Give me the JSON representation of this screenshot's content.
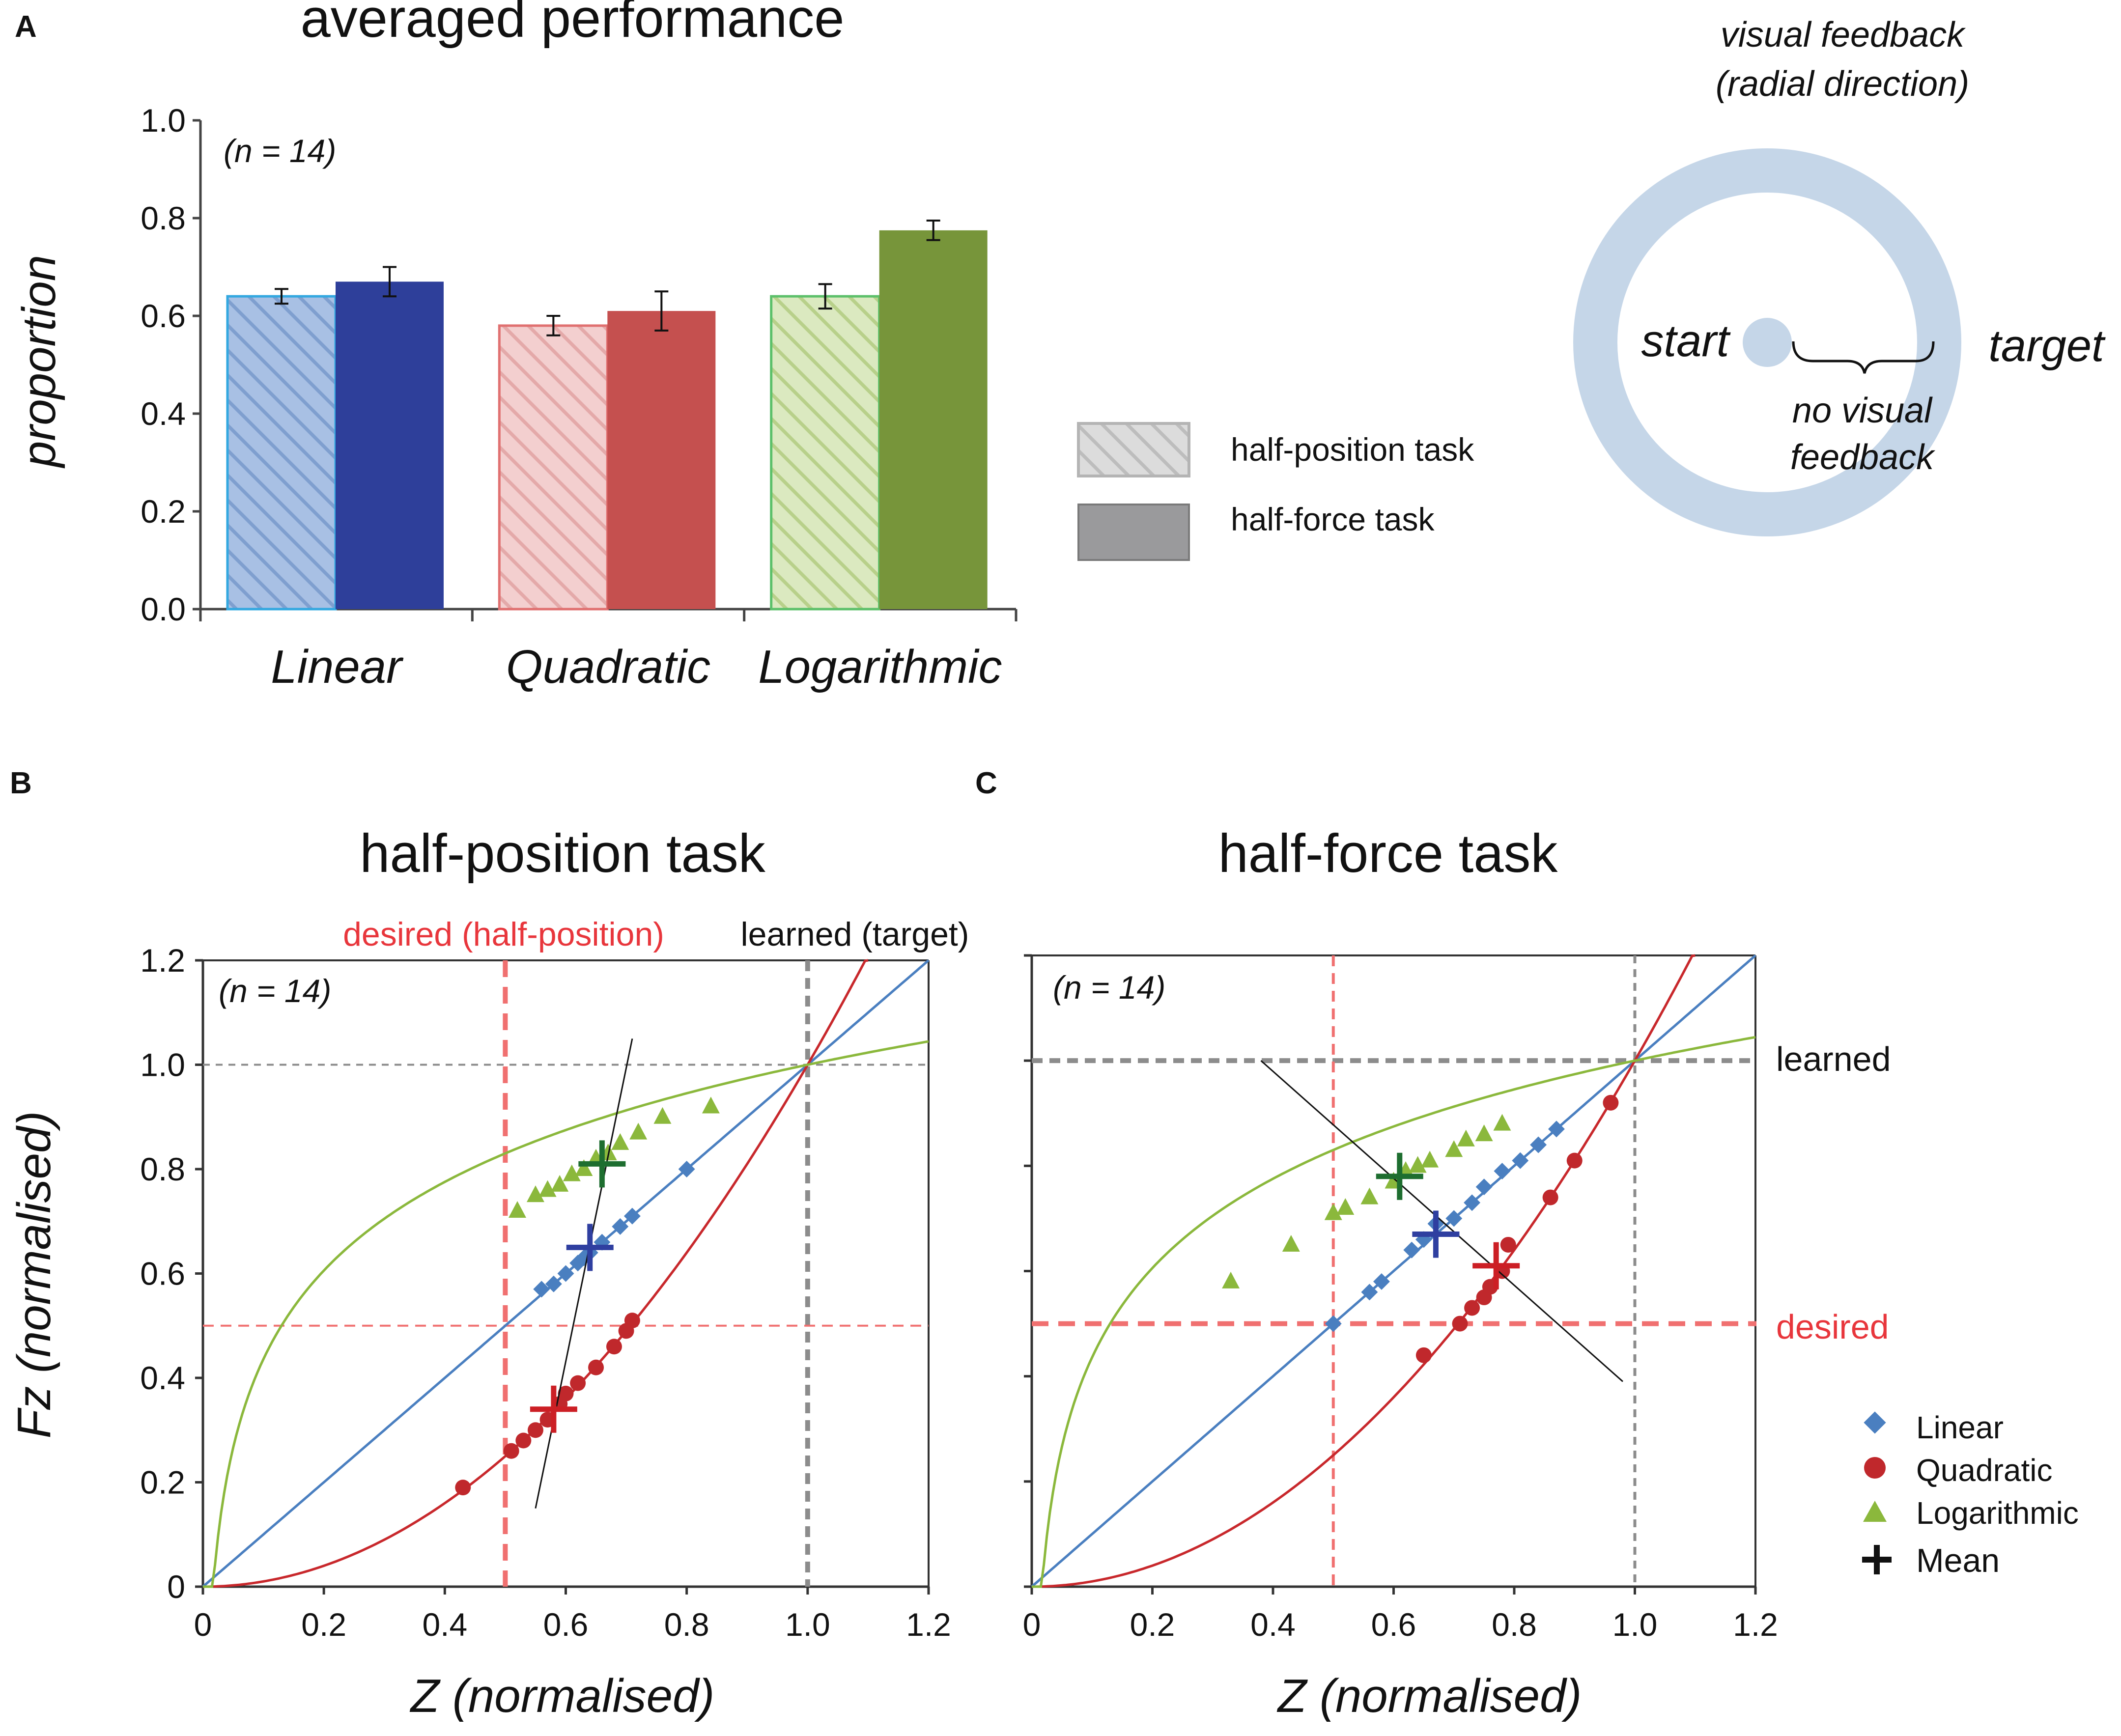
{
  "panel_letters": {
    "a": "A",
    "b": "B",
    "c": "C"
  },
  "colors": {
    "linear": "#4a7fc0",
    "linear_dark": "#2e3f9a",
    "linear_fill": "#a8c0e4",
    "quadratic": "#c0282c",
    "quadratic_bar": "#c5504f",
    "quadratic_fill": "#efc0c0",
    "logarithmic": "#8bb83c",
    "logarithmic_bar": "#77953a",
    "logarithmic_fill": "#d2e4b0",
    "mean_green": "#1e6e30",
    "mean_blue": "#2f3fa0",
    "mean_red": "#cc1f25",
    "desired_red": "#f07070",
    "grid_gray": "#8c8c8c",
    "ring": "#c5d6e8"
  },
  "chart_data": [
    {
      "type": "bar",
      "panel": "A",
      "title": "averaged performance",
      "ylabel": "proportion",
      "xlabel": "",
      "ylim": [
        0,
        1.0
      ],
      "yticks": [
        "0.0",
        "0.2",
        "0.4",
        "0.6",
        "0.8",
        "1.0"
      ],
      "annotation": "(n = 14)",
      "categories": [
        "Linear",
        "Quadratic",
        "Logarithmic"
      ],
      "series": [
        {
          "name": "half-position task",
          "pattern": "hatched",
          "values": [
            0.64,
            0.58,
            0.64
          ],
          "errors": [
            0.015,
            0.02,
            0.025
          ]
        },
        {
          "name": "half-force task",
          "pattern": "solid",
          "values": [
            0.67,
            0.61,
            0.775
          ],
          "errors": [
            0.03,
            0.04,
            0.02
          ]
        }
      ],
      "legend": {
        "placement": "right",
        "items": [
          "half-position task",
          "half-force task"
        ]
      }
    },
    {
      "type": "line",
      "panel": "B",
      "title": "half-position task",
      "xlabel": "Z (normalised)",
      "ylabel": "Fz (normalised)",
      "xlim": [
        0,
        1.2
      ],
      "ylim": [
        0,
        1.2
      ],
      "xticks": [
        "0",
        "0.2",
        "0.4",
        "0.6",
        "0.8",
        "1.0",
        "1.2"
      ],
      "yticks": [
        "0",
        "0.2",
        "0.4",
        "0.6",
        "0.8",
        "1.0",
        "1.2"
      ],
      "annotation": "(n = 14)",
      "vline_labels": {
        "desired": "desired (half-position)",
        "learned": "learned (target)"
      },
      "desired_x": 0.5,
      "learned_x": 1.0,
      "reference_y": [
        0.5,
        1.0
      ],
      "curves": [
        "Linear: Fz = Z",
        "Quadratic: Fz = Z^2",
        "Logarithmic: Fz rises steeply then flattens"
      ],
      "points": {
        "Linear": [
          [
            0.56,
            0.57
          ],
          [
            0.58,
            0.58
          ],
          [
            0.6,
            0.6
          ],
          [
            0.62,
            0.62
          ],
          [
            0.63,
            0.63
          ],
          [
            0.64,
            0.64
          ],
          [
            0.66,
            0.66
          ],
          [
            0.69,
            0.69
          ],
          [
            0.71,
            0.71
          ],
          [
            0.8,
            0.8
          ]
        ],
        "Quadratic": [
          [
            0.43,
            0.19
          ],
          [
            0.51,
            0.26
          ],
          [
            0.53,
            0.28
          ],
          [
            0.55,
            0.3
          ],
          [
            0.57,
            0.32
          ],
          [
            0.59,
            0.35
          ],
          [
            0.6,
            0.37
          ],
          [
            0.62,
            0.39
          ],
          [
            0.65,
            0.42
          ],
          [
            0.68,
            0.46
          ],
          [
            0.7,
            0.49
          ],
          [
            0.71,
            0.51
          ]
        ],
        "Logarithmic": [
          [
            0.52,
            0.72
          ],
          [
            0.55,
            0.75
          ],
          [
            0.57,
            0.76
          ],
          [
            0.59,
            0.77
          ],
          [
            0.61,
            0.79
          ],
          [
            0.63,
            0.8
          ],
          [
            0.65,
            0.82
          ],
          [
            0.67,
            0.83
          ],
          [
            0.69,
            0.85
          ],
          [
            0.72,
            0.87
          ],
          [
            0.76,
            0.9
          ],
          [
            0.84,
            0.92
          ]
        ]
      },
      "means": {
        "Logarithmic": [
          0.66,
          0.81
        ],
        "Linear": [
          0.64,
          0.65
        ],
        "Quadratic": [
          0.58,
          0.34
        ]
      },
      "fit_line": [
        [
          0.55,
          0.15
        ],
        [
          0.71,
          1.05
        ]
      ]
    },
    {
      "type": "line",
      "panel": "C",
      "title": "half-force task",
      "xlabel": "Z (normalised)",
      "ylabel": "",
      "xlim": [
        0,
        1.2
      ],
      "ylim": [
        0,
        1.2
      ],
      "xticks": [
        "0",
        "0.2",
        "0.4",
        "0.6",
        "0.8",
        "1.0",
        "1.2"
      ],
      "annotation": "(n = 14)",
      "hline_labels": {
        "learned": "learned",
        "desired": "desired"
      },
      "desired_y": 0.5,
      "learned_y": 1.0,
      "reference_x": [
        0.5,
        1.0
      ],
      "curves": [
        "Linear: Fz = Z",
        "Quadratic: Fz = Z^2",
        "Logarithmic: Fz rises steeply then flattens"
      ],
      "points": {
        "Linear": [
          [
            0.5,
            0.5
          ],
          [
            0.56,
            0.56
          ],
          [
            0.58,
            0.58
          ],
          [
            0.63,
            0.64
          ],
          [
            0.65,
            0.66
          ],
          [
            0.67,
            0.69
          ],
          [
            0.7,
            0.7
          ],
          [
            0.73,
            0.73
          ],
          [
            0.75,
            0.76
          ],
          [
            0.78,
            0.79
          ],
          [
            0.81,
            0.81
          ],
          [
            0.84,
            0.84
          ],
          [
            0.87,
            0.87
          ]
        ],
        "Logarithmic": [
          [
            0.33,
            0.58
          ],
          [
            0.43,
            0.65
          ],
          [
            0.5,
            0.71
          ],
          [
            0.52,
            0.72
          ],
          [
            0.56,
            0.74
          ],
          [
            0.6,
            0.77
          ],
          [
            0.62,
            0.79
          ],
          [
            0.64,
            0.8
          ],
          [
            0.66,
            0.81
          ],
          [
            0.7,
            0.83
          ],
          [
            0.72,
            0.85
          ],
          [
            0.75,
            0.86
          ],
          [
            0.78,
            0.88
          ]
        ],
        "Quadratic": [
          [
            0.65,
            0.44
          ],
          [
            0.71,
            0.5
          ],
          [
            0.73,
            0.53
          ],
          [
            0.75,
            0.55
          ],
          [
            0.76,
            0.57
          ],
          [
            0.78,
            0.6
          ],
          [
            0.79,
            0.65
          ],
          [
            0.86,
            0.74
          ],
          [
            0.9,
            0.81
          ],
          [
            0.96,
            0.92
          ]
        ]
      },
      "means": {
        "Logarithmic": [
          0.61,
          0.78
        ],
        "Linear": [
          0.67,
          0.67
        ],
        "Quadratic": [
          0.77,
          0.61
        ]
      },
      "fit_line": [
        [
          0.38,
          1.0
        ],
        [
          0.98,
          0.39
        ]
      ],
      "legend": {
        "placement": "bottom-right",
        "items": [
          "Linear",
          "Quadratic",
          "Logarithmic",
          "Mean"
        ]
      }
    }
  ],
  "diagram": {
    "title_line1": "visual feedback",
    "title_line2": "(radial direction)",
    "start": "start",
    "target": "target",
    "no_feedback_line1": "no visual",
    "no_feedback_line2": "feedback"
  }
}
